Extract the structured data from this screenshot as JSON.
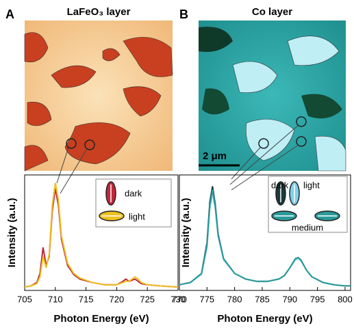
{
  "chart_data": [
    {
      "type": "line",
      "panel": "A",
      "title": "LaFeO₃ layer",
      "x_label": "Photon Energy (eV)",
      "y_label": "Intensity (a.u.)",
      "xlim": [
        705,
        730
      ],
      "xticks": [
        705,
        710,
        715,
        720,
        725,
        730
      ],
      "ylim": [
        0,
        1.02
      ],
      "x": [
        705,
        706,
        707,
        707.5,
        708,
        708.5,
        709,
        709.5,
        710,
        710.5,
        711,
        712,
        713,
        714,
        716,
        718,
        720,
        721,
        721.5,
        722,
        722.5,
        723,
        723.5,
        724,
        725,
        727,
        730
      ],
      "series": [
        {
          "name": "dark",
          "color": "#c0283a",
          "values": [
            0.03,
            0.04,
            0.07,
            0.15,
            0.38,
            0.22,
            0.3,
            0.7,
            0.9,
            0.75,
            0.45,
            0.22,
            0.14,
            0.1,
            0.07,
            0.05,
            0.05,
            0.08,
            0.1,
            0.08,
            0.09,
            0.1,
            0.08,
            0.06,
            0.05,
            0.04,
            0.03
          ]
        },
        {
          "name": "light",
          "color": "#f0c020",
          "values": [
            0.03,
            0.04,
            0.06,
            0.12,
            0.3,
            0.2,
            0.32,
            0.75,
            0.95,
            0.8,
            0.48,
            0.24,
            0.15,
            0.11,
            0.07,
            0.05,
            0.05,
            0.07,
            0.08,
            0.08,
            0.1,
            0.12,
            0.1,
            0.07,
            0.05,
            0.04,
            0.03
          ]
        }
      ]
    },
    {
      "type": "line",
      "panel": "B",
      "title": "Co layer",
      "annotation": "2 μm",
      "x_label": "Photon Energy (eV)",
      "y_label": "Intensity (a.u.)",
      "xlim": [
        770,
        801
      ],
      "xticks": [
        770,
        775,
        780,
        785,
        790,
        795,
        800
      ],
      "ylim": [
        0,
        1.02
      ],
      "x": [
        770,
        772,
        774,
        775,
        775.5,
        776,
        776.5,
        777,
        778,
        780,
        782,
        784,
        786,
        788,
        789,
        790,
        791,
        791.5,
        792,
        793,
        794,
        796,
        798,
        800,
        801
      ],
      "series": [
        {
          "name": "dark",
          "color": "#1a3a3a",
          "values": [
            0.05,
            0.07,
            0.15,
            0.42,
            0.78,
            0.92,
            0.76,
            0.5,
            0.28,
            0.15,
            0.1,
            0.08,
            0.08,
            0.1,
            0.13,
            0.2,
            0.28,
            0.29,
            0.27,
            0.18,
            0.12,
            0.07,
            0.05,
            0.04,
            0.04
          ]
        },
        {
          "name": "light",
          "color": "#7fd0e8",
          "values": [
            0.05,
            0.07,
            0.14,
            0.38,
            0.72,
            0.86,
            0.72,
            0.48,
            0.27,
            0.15,
            0.1,
            0.08,
            0.08,
            0.1,
            0.13,
            0.2,
            0.27,
            0.28,
            0.26,
            0.18,
            0.12,
            0.07,
            0.05,
            0.04,
            0.04
          ]
        },
        {
          "name": "medium",
          "color": "#2a9a9a",
          "values": [
            0.05,
            0.07,
            0.15,
            0.4,
            0.75,
            0.89,
            0.74,
            0.49,
            0.28,
            0.15,
            0.1,
            0.08,
            0.08,
            0.1,
            0.13,
            0.2,
            0.28,
            0.29,
            0.27,
            0.18,
            0.12,
            0.07,
            0.05,
            0.04,
            0.04
          ]
        }
      ]
    }
  ]
}
